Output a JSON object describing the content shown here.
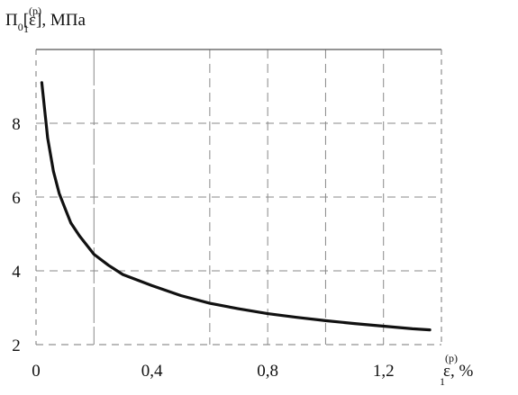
{
  "chart_data": {
    "type": "line",
    "title": "",
    "ylabel": {
      "main": "Π",
      "sub": "0",
      "bracket_open": "[ε",
      "sup": "(p)",
      "sub2": "1",
      "bracket_close": "], МПа"
    },
    "xlabel": {
      "main": "ε",
      "sup": "(p)",
      "sub": "1",
      "unit": ", %"
    },
    "xlim": [
      0,
      1.4
    ],
    "ylim": [
      2,
      10
    ],
    "x_ticks": [
      {
        "value": 0,
        "label": "0"
      },
      {
        "value": 0.4,
        "label": "0,4"
      },
      {
        "value": 0.8,
        "label": "0,8"
      },
      {
        "value": 1.2,
        "label": "1,2"
      }
    ],
    "y_ticks": [
      {
        "value": 2,
        "label": "2"
      },
      {
        "value": 4,
        "label": "4"
      },
      {
        "value": 6,
        "label": "6"
      },
      {
        "value": 8,
        "label": "8"
      }
    ],
    "grid": true,
    "grid_x": [
      0.2,
      0.6,
      0.8,
      1.0,
      1.2
    ],
    "grid_y": [
      4,
      6,
      8
    ],
    "series": [
      {
        "color": "#111111",
        "x": [
          0.02,
          0.04,
          0.06,
          0.08,
          0.1,
          0.12,
          0.15,
          0.2,
          0.25,
          0.3,
          0.4,
          0.5,
          0.6,
          0.7,
          0.8,
          0.9,
          1.0,
          1.1,
          1.2,
          1.3,
          1.36
        ],
        "y": [
          9.1,
          7.6,
          6.7,
          6.1,
          5.7,
          5.3,
          4.95,
          4.45,
          4.15,
          3.9,
          3.6,
          3.33,
          3.12,
          2.97,
          2.84,
          2.74,
          2.65,
          2.57,
          2.5,
          2.43,
          2.4
        ]
      }
    ]
  }
}
